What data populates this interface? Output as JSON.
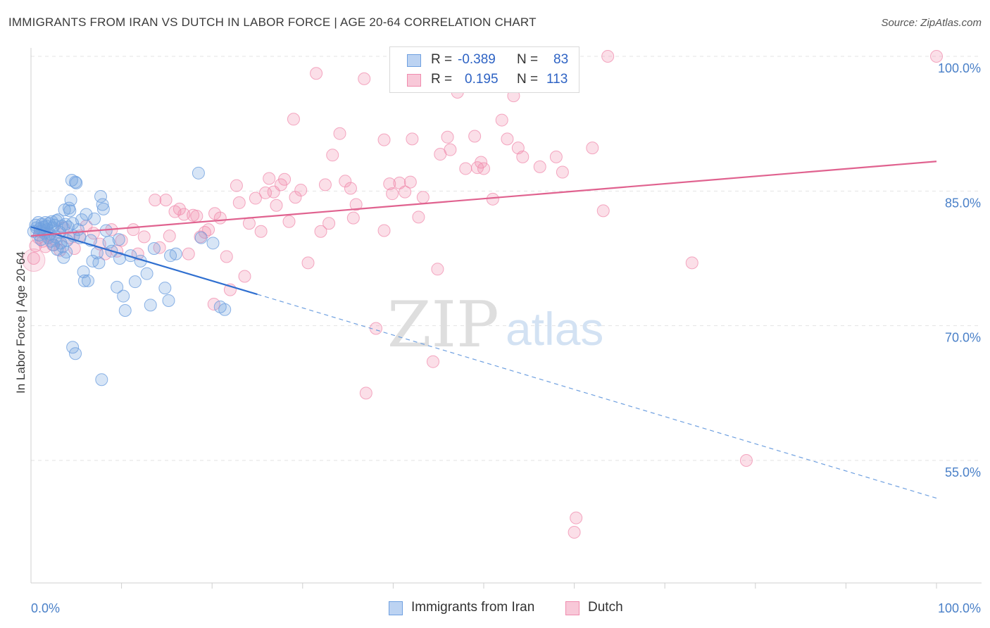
{
  "header": {
    "title": "IMMIGRANTS FROM IRAN VS DUTCH IN LABOR FORCE | AGE 20-64 CORRELATION CHART",
    "source": "Source: ZipAtlas.com"
  },
  "stats": [
    {
      "r_label": "R =",
      "r_value": "-0.389",
      "n_label": "N =",
      "n_value": "83",
      "color": "#6fa0e0"
    },
    {
      "r_label": "R =",
      "r_value": "0.195",
      "n_label": "N =",
      "n_value": "113",
      "color": "#f08cae"
    }
  ],
  "legend": [
    {
      "label": "Immigrants from Iran",
      "color": "#6fa0e0"
    },
    {
      "label": "Dutch",
      "color": "#f08cae"
    }
  ],
  "watermark": {
    "zip": "ZIP",
    "atlas": "atlas"
  },
  "chart_data": {
    "type": "scatter",
    "title": "IMMIGRANTS FROM IRAN VS DUTCH IN LABOR FORCE | AGE 20-64 CORRELATION CHART",
    "ylabel": "In Labor Force | Age 20-64",
    "xlabel": "",
    "xlim": [
      0,
      100
    ],
    "ylim": [
      39,
      101
    ],
    "x_tick_labels": [
      "0.0%",
      "100.0%"
    ],
    "y_ticks": [
      {
        "value": 100,
        "label": "100.0%"
      },
      {
        "value": 85,
        "label": "85.0%"
      },
      {
        "value": 70,
        "label": "70.0%"
      },
      {
        "value": 55,
        "label": "55.0%"
      }
    ],
    "grid": true,
    "series": [
      {
        "name": "Immigrants from Iran",
        "color": "#6fa0e0",
        "trend": {
          "x0": 0,
          "y0": 81.0,
          "x1": 25,
          "y1": 73.5,
          "dashed_to_x": 100,
          "dashed_to_y": 50.8
        },
        "points": [
          [
            0.3,
            80.5
          ],
          [
            0.5,
            81.2
          ],
          [
            0.6,
            80.9
          ],
          [
            0.8,
            81.5
          ],
          [
            0.9,
            80.1
          ],
          [
            1.0,
            80.8
          ],
          [
            1.1,
            79.6
          ],
          [
            1.2,
            81.3
          ],
          [
            1.3,
            80.6
          ],
          [
            1.4,
            81.0
          ],
          [
            1.5,
            80.3
          ],
          [
            1.6,
            81.5
          ],
          [
            1.7,
            81.1
          ],
          [
            1.8,
            80.7
          ],
          [
            1.9,
            79.8
          ],
          [
            2.0,
            81.4
          ],
          [
            2.1,
            80.2
          ],
          [
            2.2,
            79.4
          ],
          [
            2.3,
            81.6
          ],
          [
            2.4,
            80.9
          ],
          [
            2.5,
            79.0
          ],
          [
            2.6,
            81.2
          ],
          [
            2.7,
            79.9
          ],
          [
            2.8,
            81.7
          ],
          [
            2.9,
            78.5
          ],
          [
            3.0,
            81.8
          ],
          [
            3.2,
            80.4
          ],
          [
            3.3,
            79.2
          ],
          [
            3.4,
            81.1
          ],
          [
            3.5,
            78.8
          ],
          [
            3.6,
            77.6
          ],
          [
            3.7,
            82.9
          ],
          [
            3.8,
            81.3
          ],
          [
            3.9,
            78.2
          ],
          [
            4.0,
            79.5
          ],
          [
            4.1,
            81.0
          ],
          [
            4.2,
            83.1
          ],
          [
            4.3,
            82.8
          ],
          [
            4.4,
            84.0
          ],
          [
            4.5,
            86.2
          ],
          [
            4.6,
            81.4
          ],
          [
            4.7,
            80.0
          ],
          [
            4.9,
            86.0
          ],
          [
            5.0,
            85.9
          ],
          [
            5.2,
            80.7
          ],
          [
            5.4,
            79.8
          ],
          [
            5.6,
            81.8
          ],
          [
            5.8,
            76.0
          ],
          [
            5.9,
            75.0
          ],
          [
            6.1,
            82.4
          ],
          [
            6.3,
            75.0
          ],
          [
            6.6,
            79.5
          ],
          [
            6.8,
            77.2
          ],
          [
            7.0,
            81.9
          ],
          [
            7.3,
            78.1
          ],
          [
            7.5,
            77.0
          ],
          [
            7.7,
            84.4
          ],
          [
            7.9,
            83.5
          ],
          [
            8.0,
            83.0
          ],
          [
            8.3,
            80.6
          ],
          [
            8.6,
            79.3
          ],
          [
            8.9,
            78.3
          ],
          [
            9.5,
            74.3
          ],
          [
            9.7,
            79.6
          ],
          [
            9.8,
            77.5
          ],
          [
            10.2,
            73.3
          ],
          [
            10.4,
            71.7
          ],
          [
            11.0,
            77.8
          ],
          [
            11.5,
            74.9
          ],
          [
            12.1,
            77.2
          ],
          [
            12.8,
            75.8
          ],
          [
            13.2,
            72.3
          ],
          [
            13.6,
            78.6
          ],
          [
            14.8,
            74.2
          ],
          [
            15.2,
            72.8
          ],
          [
            15.4,
            77.8
          ],
          [
            16.0,
            78.0
          ],
          [
            18.5,
            87.0
          ],
          [
            18.8,
            79.8
          ],
          [
            20.1,
            79.2
          ],
          [
            20.9,
            72.1
          ],
          [
            21.4,
            71.8
          ],
          [
            4.6,
            67.6
          ],
          [
            4.9,
            66.9
          ],
          [
            7.8,
            64.0
          ]
        ]
      },
      {
        "name": "Dutch",
        "color": "#f08cae",
        "trend": {
          "x0": 0,
          "y0": 80.0,
          "x1": 100,
          "y1": 88.3
        },
        "points": [
          [
            0.3,
            77.5
          ],
          [
            0.5,
            78.9
          ],
          [
            0.8,
            79.8
          ],
          [
            1.0,
            80.5
          ],
          [
            1.3,
            79.4
          ],
          [
            1.6,
            78.8
          ],
          [
            2.0,
            80.1
          ],
          [
            2.4,
            79.0
          ],
          [
            2.8,
            79.5
          ],
          [
            3.2,
            78.4
          ],
          [
            3.6,
            80.9
          ],
          [
            4.2,
            79.8
          ],
          [
            4.8,
            78.6
          ],
          [
            5.4,
            80.0
          ],
          [
            6.1,
            81.1
          ],
          [
            6.9,
            80.3
          ],
          [
            7.6,
            79.1
          ],
          [
            8.2,
            78.0
          ],
          [
            8.9,
            80.7
          ],
          [
            9.5,
            78.3
          ],
          [
            10.0,
            79.5
          ],
          [
            11.3,
            80.7
          ],
          [
            11.8,
            78.0
          ],
          [
            12.5,
            79.9
          ],
          [
            13.7,
            84.0
          ],
          [
            14.2,
            78.7
          ],
          [
            14.9,
            84.0
          ],
          [
            15.3,
            80.0
          ],
          [
            15.9,
            82.7
          ],
          [
            16.4,
            83.0
          ],
          [
            16.9,
            82.4
          ],
          [
            17.4,
            78.0
          ],
          [
            17.9,
            82.3
          ],
          [
            18.3,
            82.2
          ],
          [
            18.7,
            79.9
          ],
          [
            19.2,
            80.4
          ],
          [
            19.6,
            80.7
          ],
          [
            20.3,
            82.5
          ],
          [
            20.9,
            82.0
          ],
          [
            21.6,
            77.7
          ],
          [
            22.0,
            74.0
          ],
          [
            22.7,
            85.6
          ],
          [
            23.0,
            83.7
          ],
          [
            23.6,
            75.5
          ],
          [
            24.1,
            81.4
          ],
          [
            24.8,
            84.2
          ],
          [
            25.4,
            80.5
          ],
          [
            25.9,
            84.8
          ],
          [
            26.3,
            86.4
          ],
          [
            26.8,
            84.9
          ],
          [
            27.1,
            83.4
          ],
          [
            27.6,
            85.7
          ],
          [
            28.0,
            86.3
          ],
          [
            28.5,
            81.6
          ],
          [
            29.2,
            84.3
          ],
          [
            29.8,
            85.1
          ],
          [
            20.2,
            72.4
          ],
          [
            30.6,
            77.0
          ],
          [
            31.5,
            98.1
          ],
          [
            32.0,
            80.5
          ],
          [
            32.5,
            85.7
          ],
          [
            32.9,
            81.4
          ],
          [
            33.3,
            89.0
          ],
          [
            34.1,
            91.4
          ],
          [
            34.7,
            86.1
          ],
          [
            35.3,
            85.3
          ],
          [
            35.6,
            82.0
          ],
          [
            35.9,
            83.5
          ],
          [
            36.8,
            97.5
          ],
          [
            38.1,
            69.7
          ],
          [
            39.0,
            90.7
          ],
          [
            39.6,
            85.8
          ],
          [
            39.9,
            84.7
          ],
          [
            40.7,
            85.9
          ],
          [
            41.3,
            84.9
          ],
          [
            41.9,
            86.0
          ],
          [
            42.1,
            90.8
          ],
          [
            42.8,
            82.1
          ],
          [
            43.3,
            84.3
          ],
          [
            44.4,
            66.0
          ],
          [
            44.9,
            76.3
          ],
          [
            45.2,
            89.1
          ],
          [
            46.0,
            91.0
          ],
          [
            46.3,
            89.6
          ],
          [
            47.1,
            96.0
          ],
          [
            48.0,
            87.5
          ],
          [
            49.3,
            87.6
          ],
          [
            49.7,
            88.2
          ],
          [
            50.0,
            87.5
          ],
          [
            51.0,
            84.1
          ],
          [
            52.0,
            92.9
          ],
          [
            52.6,
            90.8
          ],
          [
            53.3,
            95.6
          ],
          [
            53.8,
            89.8
          ],
          [
            54.3,
            88.8
          ],
          [
            56.2,
            87.7
          ],
          [
            58.0,
            88.8
          ],
          [
            58.7,
            87.1
          ],
          [
            62.0,
            89.8
          ],
          [
            63.2,
            82.8
          ],
          [
            63.7,
            100.0
          ],
          [
            73.0,
            77.0
          ],
          [
            79.0,
            55.0
          ],
          [
            100.0,
            100.0
          ],
          [
            29.0,
            93.0
          ],
          [
            37.0,
            62.5
          ],
          [
            39.0,
            80.6
          ],
          [
            60.0,
            47.0
          ],
          [
            60.2,
            48.6
          ],
          [
            49.0,
            91.1
          ]
        ]
      }
    ]
  }
}
